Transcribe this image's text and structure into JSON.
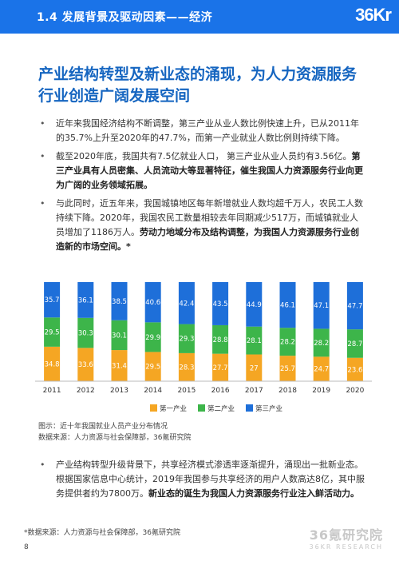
{
  "header": {
    "title": "1.4 发展背景及驱动因素——经济",
    "logo": "36Kr"
  },
  "headline": "产业结构转型及新业态的涌现，为人力资源服务行业创造广阔发展空间",
  "bullets": [
    {
      "text": "近年来我国经济结构不断调整，第三产业从业人数比例快速上升，已从2011年的35.7%上升至2020年的47.7%，而第一产业就业人数比例则持续下降。",
      "bold": ""
    },
    {
      "text": "截至2020年底，我国共有7.5亿就业人口， 第三产业从业人员约有3.56亿。",
      "bold": "第三产业具有人员密集、人员流动大等显著特征，催生我国人力资源服务行业向更为广阔的业务领域拓展。"
    },
    {
      "text": "与此同时，近五年来，我国城镇地区每年新增就业人数均超千万人，农民工人数持续下降。2020年，我国农民工数量相较去年同期减少517万，而城镇就业人员增加了1186万人。",
      "bold": "劳动力地域分布及结构调整，为我国人力资源服务行业创造新的市场空间。*"
    }
  ],
  "bullets2": [
    {
      "text": "产业结构转型升级背景下，共享经济模式渗透率逐渐提升，涌现出一批新业态。根据国家信息中心统计，2019年我国参与共享经济的用户人数高达8亿，其中服务提供者约为7800万。",
      "bold": "新业态的诞生为我国人力资源服务行业注入鲜活动力。"
    }
  ],
  "chart_data": {
    "type": "bar",
    "stacked": true,
    "categories": [
      "2011",
      "2012",
      "2013",
      "2014",
      "2015",
      "2016",
      "2017",
      "2018",
      "2019",
      "2020"
    ],
    "series": [
      {
        "name": "第一产业",
        "color": "#f5a623",
        "values": [
          34.8,
          33.6,
          31.4,
          29.5,
          28.3,
          27.7,
          27,
          25.7,
          24.7,
          23.6
        ]
      },
      {
        "name": "第二产业",
        "color": "#3db54a",
        "values": [
          29.5,
          30.3,
          30.1,
          29.9,
          29.3,
          28.8,
          28.1,
          28.2,
          28.2,
          28.7
        ]
      },
      {
        "name": "第三产业",
        "color": "#1e6fd9",
        "values": [
          35.7,
          36.1,
          38.5,
          40.6,
          42.4,
          43.5,
          44.9,
          46.1,
          47.1,
          47.7
        ]
      }
    ],
    "ylim": [
      0,
      100
    ],
    "legend": "bottom"
  },
  "caption": {
    "line1": "图示：近十年我国就业人员产业分布情况",
    "line2": "数据来源：人力资源与社会保障部，36氪研究院"
  },
  "footnote": "*数据来源：人力资源与社会保障部，36氪研究院",
  "page_number": "8",
  "watermark": {
    "line1": "36氪研究院",
    "line2": "36KR RESEARCH"
  }
}
